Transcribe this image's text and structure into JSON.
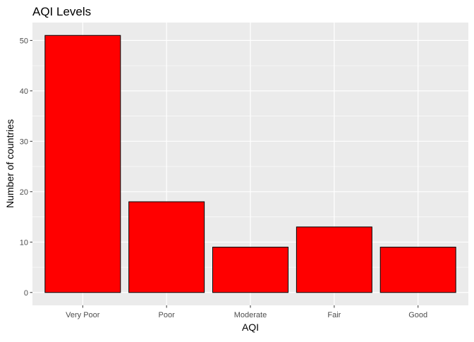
{
  "chart_data": {
    "type": "bar",
    "title": "AQI Levels",
    "xlabel": "AQI",
    "ylabel": "Number of countries",
    "categories": [
      "Very Poor",
      "Poor",
      "Moderate",
      "Fair",
      "Good"
    ],
    "values": [
      51,
      18,
      9,
      13,
      9
    ],
    "ylim": [
      -2.55,
      53.55
    ],
    "yticks": [
      0,
      10,
      20,
      30,
      40,
      50
    ],
    "grid": true,
    "legend": "none",
    "colors": {
      "bar_fill": "#FF0000",
      "bar_stroke": "#000000",
      "panel_background": "#EBEBEB",
      "grid_major": "#FFFFFF",
      "tick_text": "#4D4D4D",
      "tick_mark": "#333333"
    }
  }
}
